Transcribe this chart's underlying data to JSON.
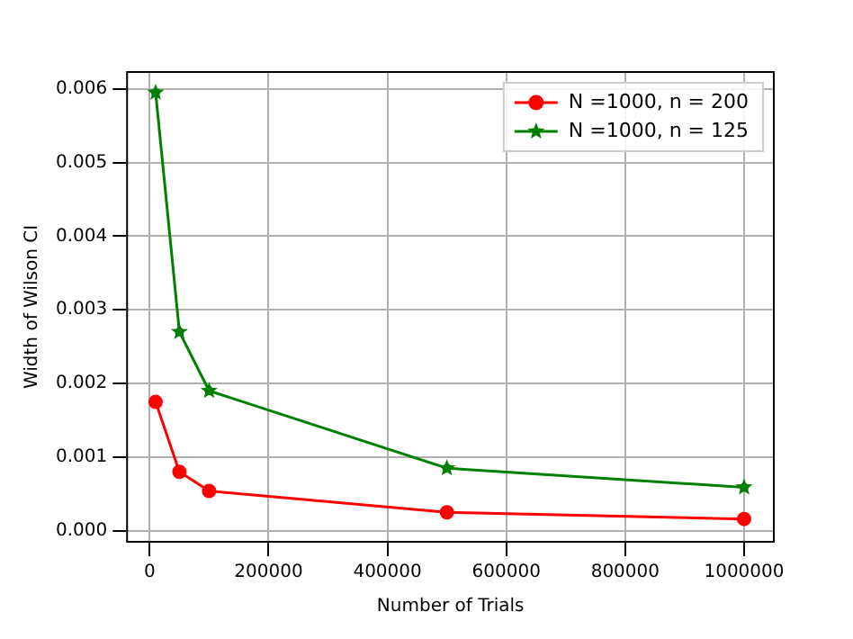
{
  "chart_data": {
    "type": "line",
    "xlabel": "Number of Trials",
    "ylabel": "Width of Wilson CI",
    "x": [
      10000,
      50000,
      100000,
      500000,
      1000000
    ],
    "series": [
      {
        "name": "N =1000, n = 200",
        "color": "#ff0000",
        "marker": "circle",
        "values": [
          0.00175,
          0.0008,
          0.00054,
          0.00025,
          0.00016
        ]
      },
      {
        "name": "N =1000, n = 125",
        "color": "#008000",
        "marker": "star",
        "values": [
          0.00595,
          0.0027,
          0.0019,
          0.00085,
          0.00059
        ]
      }
    ],
    "xlim": [
      -38000,
      1050000
    ],
    "xticks": [
      0,
      200000,
      400000,
      600000,
      800000,
      1000000
    ],
    "ylim": [
      -0.00015,
      0.00623
    ],
    "yticks": [
      {
        "value": 0,
        "label": "0.000"
      },
      0.001,
      0.002,
      0.003,
      0.004,
      0.005,
      0.006
    ],
    "grid": true,
    "legend": "top right"
  }
}
